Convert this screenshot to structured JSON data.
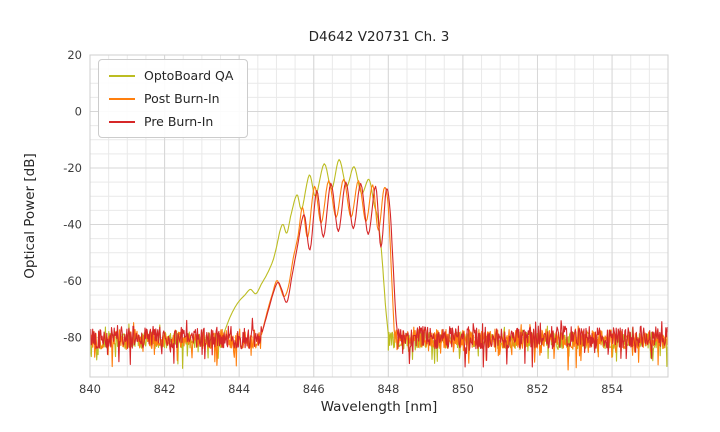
{
  "chart_data": {
    "type": "line",
    "title": "D4642 V20731 Ch. 3",
    "xlabel": "Wavelength [nm]",
    "ylabel": "Optical Power [dB]",
    "xlim": [
      840,
      855.5
    ],
    "ylim": [
      -94,
      20
    ],
    "xticks": [
      840,
      842,
      844,
      846,
      848,
      850,
      852,
      854
    ],
    "yticks": [
      20,
      0,
      -20,
      -40,
      -60,
      -80
    ],
    "x_minor_step": 0.5,
    "y_minor_step": 5,
    "grid": true,
    "legend_position": "upper-left",
    "series": [
      {
        "name": "OptoBoard QA",
        "color": "#bcbd22",
        "seed": 13,
        "noise": [
          {
            "from": 840,
            "to": 843.55,
            "mean": -81,
            "amp": 3,
            "spike": 8
          },
          {
            "from": 848.0,
            "to": 855.5,
            "mean": -81,
            "amp": 3,
            "spike": 8
          }
        ],
        "signal": [
          [
            843.55,
            -80
          ],
          [
            843.75,
            -73
          ],
          [
            843.95,
            -68
          ],
          [
            844.15,
            -65
          ],
          [
            844.3,
            -63
          ],
          [
            844.45,
            -64.5
          ],
          [
            844.6,
            -61
          ],
          [
            844.75,
            -57.5
          ],
          [
            844.9,
            -53
          ],
          [
            845.0,
            -48
          ],
          [
            845.1,
            -42
          ],
          [
            845.18,
            -40
          ],
          [
            845.28,
            -43
          ],
          [
            845.4,
            -36
          ],
          [
            845.55,
            -29.5
          ],
          [
            845.68,
            -34.5
          ],
          [
            845.88,
            -22.5
          ],
          [
            846.05,
            -30
          ],
          [
            846.28,
            -18.5
          ],
          [
            846.48,
            -27.5
          ],
          [
            846.68,
            -17
          ],
          [
            846.88,
            -26.5
          ],
          [
            847.08,
            -19.5
          ],
          [
            847.28,
            -29
          ],
          [
            847.48,
            -24
          ],
          [
            847.62,
            -33
          ],
          [
            847.72,
            -38
          ],
          [
            847.82,
            -50
          ],
          [
            847.92,
            -68
          ],
          [
            848.0,
            -79
          ]
        ]
      },
      {
        "name": "Post Burn-In",
        "color": "#ff7f0e",
        "seed": 101,
        "noise": [
          {
            "from": 840,
            "to": 844.6,
            "mean": -80.5,
            "amp": 3.5,
            "spike": 9
          },
          {
            "from": 848.16,
            "to": 855.5,
            "mean": -80.5,
            "amp": 3.5,
            "spike": 9
          }
        ],
        "signal": [
          [
            844.6,
            -79
          ],
          [
            844.75,
            -71
          ],
          [
            844.88,
            -65
          ],
          [
            845.0,
            -60
          ],
          [
            845.08,
            -61.5
          ],
          [
            845.2,
            -65.5
          ],
          [
            845.32,
            -62
          ],
          [
            845.45,
            -52
          ],
          [
            845.58,
            -44
          ],
          [
            845.7,
            -34
          ],
          [
            845.84,
            -44.5
          ],
          [
            846.02,
            -26.5
          ],
          [
            846.2,
            -39.5
          ],
          [
            846.4,
            -24.5
          ],
          [
            846.6,
            -37.5
          ],
          [
            846.8,
            -24
          ],
          [
            847.0,
            -37.5
          ],
          [
            847.2,
            -24.5
          ],
          [
            847.4,
            -39
          ],
          [
            847.58,
            -26
          ],
          [
            847.73,
            -42
          ],
          [
            847.88,
            -27.5
          ],
          [
            847.98,
            -31
          ],
          [
            848.04,
            -44
          ],
          [
            848.1,
            -62
          ],
          [
            848.16,
            -78
          ]
        ]
      },
      {
        "name": "Pre Burn-In",
        "color": "#d62728",
        "seed": 42,
        "noise": [
          {
            "from": 840,
            "to": 844.62,
            "mean": -80,
            "amp": 4,
            "spike": 10
          },
          {
            "from": 848.26,
            "to": 855.5,
            "mean": -80,
            "amp": 4,
            "spike": 10
          }
        ],
        "signal": [
          [
            844.62,
            -78
          ],
          [
            844.78,
            -70.5
          ],
          [
            844.92,
            -64
          ],
          [
            845.04,
            -60.5
          ],
          [
            845.14,
            -63
          ],
          [
            845.28,
            -67.5
          ],
          [
            845.42,
            -58
          ],
          [
            845.56,
            -48
          ],
          [
            845.74,
            -36.5
          ],
          [
            845.9,
            -49
          ],
          [
            846.08,
            -28
          ],
          [
            846.26,
            -44.5
          ],
          [
            846.46,
            -25.5
          ],
          [
            846.66,
            -42.5
          ],
          [
            846.86,
            -25
          ],
          [
            847.06,
            -41.5
          ],
          [
            847.26,
            -25.5
          ],
          [
            847.46,
            -43.5
          ],
          [
            847.66,
            -26.5
          ],
          [
            847.8,
            -48
          ],
          [
            847.94,
            -28
          ],
          [
            848.04,
            -34
          ],
          [
            848.12,
            -52
          ],
          [
            848.2,
            -72
          ],
          [
            848.26,
            -80
          ]
        ]
      }
    ]
  }
}
